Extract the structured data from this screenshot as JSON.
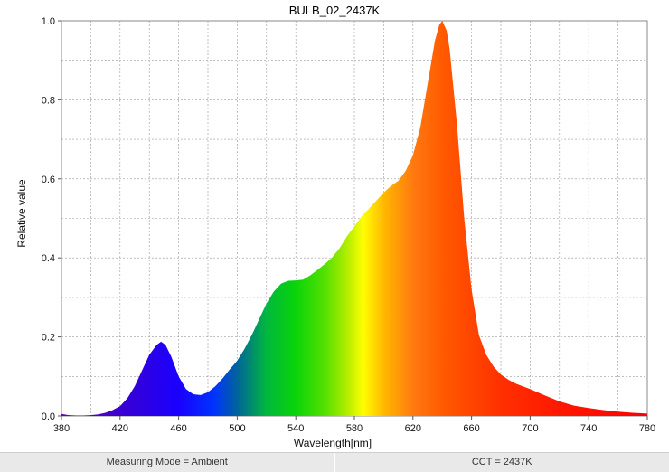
{
  "chart_data": {
    "type": "area",
    "title": "BULB_02_2437K",
    "xlabel": "Wavelength[nm]",
    "ylabel": "Relative value",
    "xlim": [
      380,
      780
    ],
    "ylim": [
      0,
      1.0
    ],
    "x_ticks": [
      "380",
      "420",
      "460",
      "500",
      "540",
      "580",
      "620",
      "660",
      "700",
      "740",
      "780"
    ],
    "y_ticks": [
      "0.0",
      "0.2",
      "0.4",
      "0.6",
      "0.8",
      "1.0"
    ],
    "grid": true,
    "fill": "visible-spectrum gradient",
    "series": [
      {
        "x": [
          380,
          385,
          390,
          395,
          400,
          405,
          410,
          415,
          420,
          425,
          430,
          435,
          440,
          445,
          448,
          451,
          455,
          460,
          465,
          470,
          475,
          480,
          485,
          490,
          495,
          500,
          505,
          510,
          515,
          520,
          525,
          530,
          535,
          540,
          545,
          550,
          555,
          560,
          565,
          570,
          575,
          580,
          585,
          590,
          595,
          600,
          605,
          610,
          615,
          620,
          625,
          630,
          635,
          638,
          640,
          643,
          645,
          650,
          655,
          660,
          665,
          670,
          675,
          680,
          685,
          690,
          695,
          700,
          710,
          720,
          730,
          740,
          750,
          760,
          770,
          780
        ],
        "y": [
          0.005,
          0.002,
          0.001,
          0.001,
          0.002,
          0.004,
          0.008,
          0.015,
          0.025,
          0.045,
          0.075,
          0.115,
          0.155,
          0.18,
          0.188,
          0.18,
          0.15,
          0.1,
          0.068,
          0.055,
          0.053,
          0.06,
          0.075,
          0.095,
          0.118,
          0.14,
          0.17,
          0.205,
          0.245,
          0.285,
          0.315,
          0.335,
          0.342,
          0.343,
          0.345,
          0.356,
          0.37,
          0.385,
          0.402,
          0.425,
          0.455,
          0.48,
          0.505,
          0.525,
          0.545,
          0.565,
          0.582,
          0.595,
          0.62,
          0.66,
          0.73,
          0.84,
          0.95,
          0.99,
          1.0,
          0.975,
          0.93,
          0.74,
          0.5,
          0.32,
          0.205,
          0.155,
          0.125,
          0.105,
          0.092,
          0.082,
          0.075,
          0.068,
          0.052,
          0.037,
          0.026,
          0.02,
          0.015,
          0.011,
          0.008,
          0.006
        ]
      }
    ]
  },
  "footer": {
    "mode": "Measuring Mode = Ambient",
    "cct": "CCT = 2437K"
  }
}
